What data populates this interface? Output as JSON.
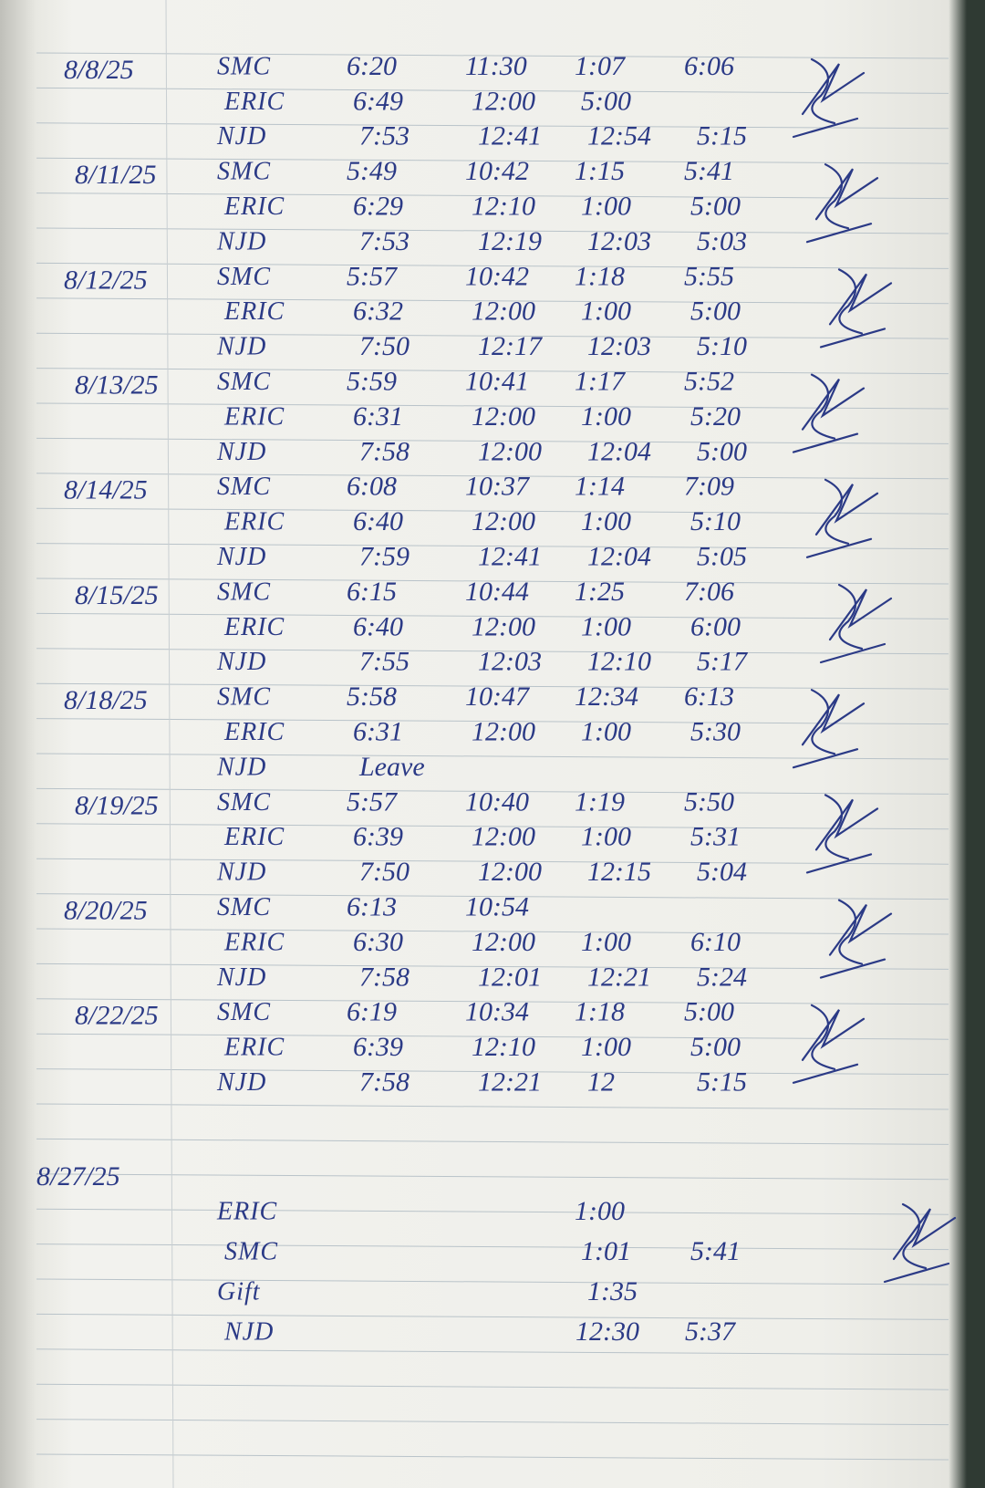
{
  "log": {
    "entries": [
      {
        "date": "8/8/25",
        "rows": [
          {
            "name": "SMC",
            "times": [
              "6:20",
              "11:30",
              "1:07",
              "6:06"
            ]
          },
          {
            "name": "ERIC",
            "times": [
              "6:49",
              "12:00",
              "5:00",
              null
            ]
          },
          {
            "name": "NJD",
            "times": [
              "7:53",
              "12:41",
              "12:54",
              "5:15"
            ]
          }
        ]
      },
      {
        "date": "8/11/25",
        "rows": [
          {
            "name": "SMC",
            "times": [
              "5:49",
              "10:42",
              "1:15",
              "5:41"
            ]
          },
          {
            "name": "ERIC",
            "times": [
              "6:29",
              "12:10",
              "1:00",
              "5:00"
            ]
          },
          {
            "name": "NJD",
            "times": [
              "7:53",
              "12:19",
              "12:03",
              "5:03"
            ]
          }
        ]
      },
      {
        "date": "8/12/25",
        "rows": [
          {
            "name": "SMC",
            "times": [
              "5:57",
              "10:42",
              "1:18",
              "5:55"
            ]
          },
          {
            "name": "ERIC",
            "times": [
              "6:32",
              "12:00",
              "1:00",
              "5:00"
            ]
          },
          {
            "name": "NJD",
            "times": [
              "7:50",
              "12:17",
              "12:03",
              "5:10"
            ]
          }
        ]
      },
      {
        "date": "8/13/25",
        "rows": [
          {
            "name": "SMC",
            "times": [
              "5:59",
              "10:41",
              "1:17",
              "5:52"
            ]
          },
          {
            "name": "ERIC",
            "times": [
              "6:31",
              "12:00",
              "1:00",
              "5:20"
            ]
          },
          {
            "name": "NJD",
            "times": [
              "7:58",
              "12:00",
              "12:04",
              "5:00"
            ]
          }
        ]
      },
      {
        "date": "8/14/25",
        "rows": [
          {
            "name": "SMC",
            "times": [
              "6:08",
              "10:37",
              "1:14",
              "7:09"
            ]
          },
          {
            "name": "ERIC",
            "times": [
              "6:40",
              "12:00",
              "1:00",
              "5:10"
            ]
          },
          {
            "name": "NJD",
            "times": [
              "7:59",
              "12:41",
              "12:04",
              "5:05"
            ]
          }
        ]
      },
      {
        "date": "8/15/25",
        "rows": [
          {
            "name": "SMC",
            "times": [
              "6:15",
              "10:44",
              "1:25",
              "7:06"
            ]
          },
          {
            "name": "ERIC",
            "times": [
              "6:40",
              "12:00",
              "1:00",
              "6:00"
            ]
          },
          {
            "name": "NJD",
            "times": [
              "7:55",
              "12:03",
              "12:10",
              "5:17"
            ]
          }
        ]
      },
      {
        "date": "8/18/25",
        "rows": [
          {
            "name": "SMC",
            "times": [
              "5:58",
              "10:47",
              "12:34",
              "6:13"
            ]
          },
          {
            "name": "ERIC",
            "times": [
              "6:31",
              "12:00",
              "1:00",
              "5:30"
            ]
          },
          {
            "name": "NJD",
            "times": [
              "Leave",
              null,
              null,
              null
            ]
          }
        ]
      },
      {
        "date": "8/19/25",
        "rows": [
          {
            "name": "SMC",
            "times": [
              "5:57",
              "10:40",
              "1:19",
              "5:50"
            ]
          },
          {
            "name": "ERIC",
            "times": [
              "6:39",
              "12:00",
              "1:00",
              "5:31"
            ]
          },
          {
            "name": "NJD",
            "times": [
              "7:50",
              "12:00",
              "12:15",
              "5:04"
            ]
          }
        ]
      },
      {
        "date": "8/20/25",
        "rows": [
          {
            "name": "SMC",
            "times": [
              "6:13",
              "10:54",
              null,
              null
            ]
          },
          {
            "name": "ERIC",
            "times": [
              "6:30",
              "12:00",
              "1:00",
              "6:10"
            ]
          },
          {
            "name": "NJD",
            "times": [
              "7:58",
              "12:01",
              "12:21",
              "5:24"
            ]
          }
        ]
      },
      {
        "date": "8/22/25",
        "rows": [
          {
            "name": "SMC",
            "times": [
              "6:19",
              "10:34",
              "1:18",
              "5:00"
            ]
          },
          {
            "name": "ERIC",
            "times": [
              "6:39",
              "12:10",
              "1:00",
              "5:00"
            ]
          },
          {
            "name": "NJD",
            "times": [
              "7:58",
              "12:21",
              "12",
              "5:15"
            ]
          }
        ]
      },
      {
        "date": "8/27/25",
        "rows": [
          {
            "name": "ERIC",
            "times": [
              null,
              null,
              "1:00",
              null
            ]
          },
          {
            "name": "SMC",
            "times": [
              null,
              null,
              "1:01",
              "5:41"
            ]
          },
          {
            "name": "Gift",
            "times": [
              null,
              null,
              "1:35",
              null
            ]
          },
          {
            "name": "NJD",
            "times": [
              null,
              null,
              "12:30",
              "5:37"
            ]
          }
        ]
      }
    ]
  }
}
